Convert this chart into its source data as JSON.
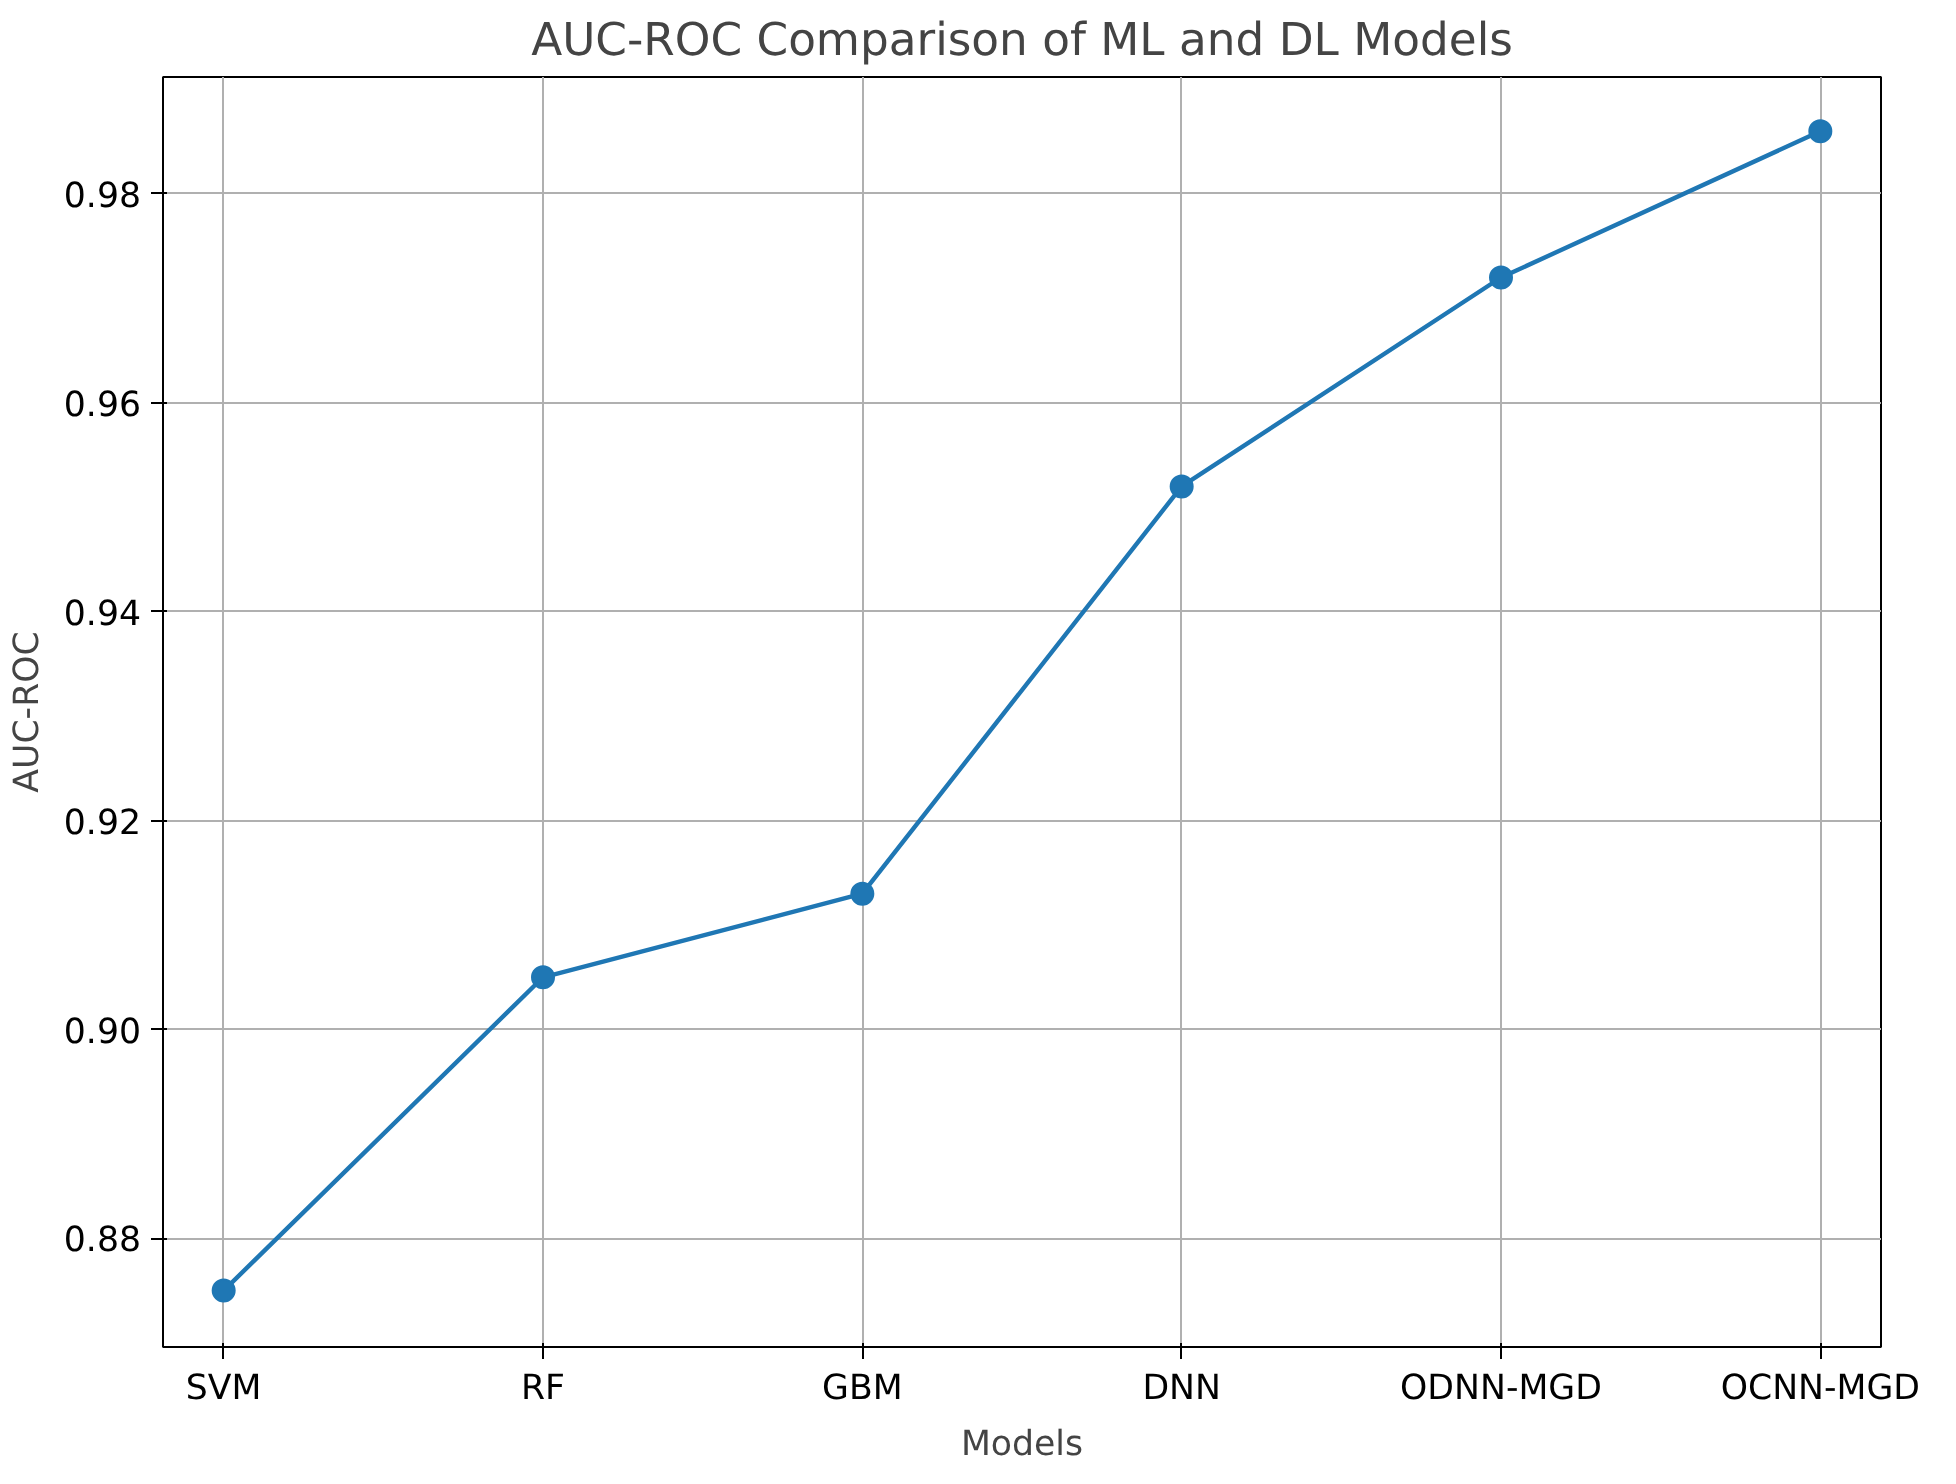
{
  "chart_data": {
    "type": "line",
    "title": "AUC-ROC Comparison of ML and DL Models",
    "xlabel": "Models",
    "ylabel": "AUC-ROC",
    "categories": [
      "SVM",
      "RF",
      "GBM",
      "DNN",
      "ODNN-MGD",
      "OCNN-MGD"
    ],
    "series": [
      {
        "color": "#1f77b4",
        "values": [
          0.875,
          0.905,
          0.913,
          0.952,
          0.972,
          0.986
        ]
      }
    ],
    "ylim": [
      0.8696,
      0.9912
    ],
    "yticks": [
      {
        "value": 0.88,
        "label": "0.88"
      },
      {
        "value": 0.9,
        "label": "0.90"
      },
      {
        "value": 0.92,
        "label": "0.92"
      },
      {
        "value": 0.94,
        "label": "0.94"
      },
      {
        "value": 0.96,
        "label": "0.96"
      },
      {
        "value": 0.98,
        "label": "0.98"
      }
    ],
    "grid": true,
    "marker": "circle",
    "line_style": "solid"
  }
}
